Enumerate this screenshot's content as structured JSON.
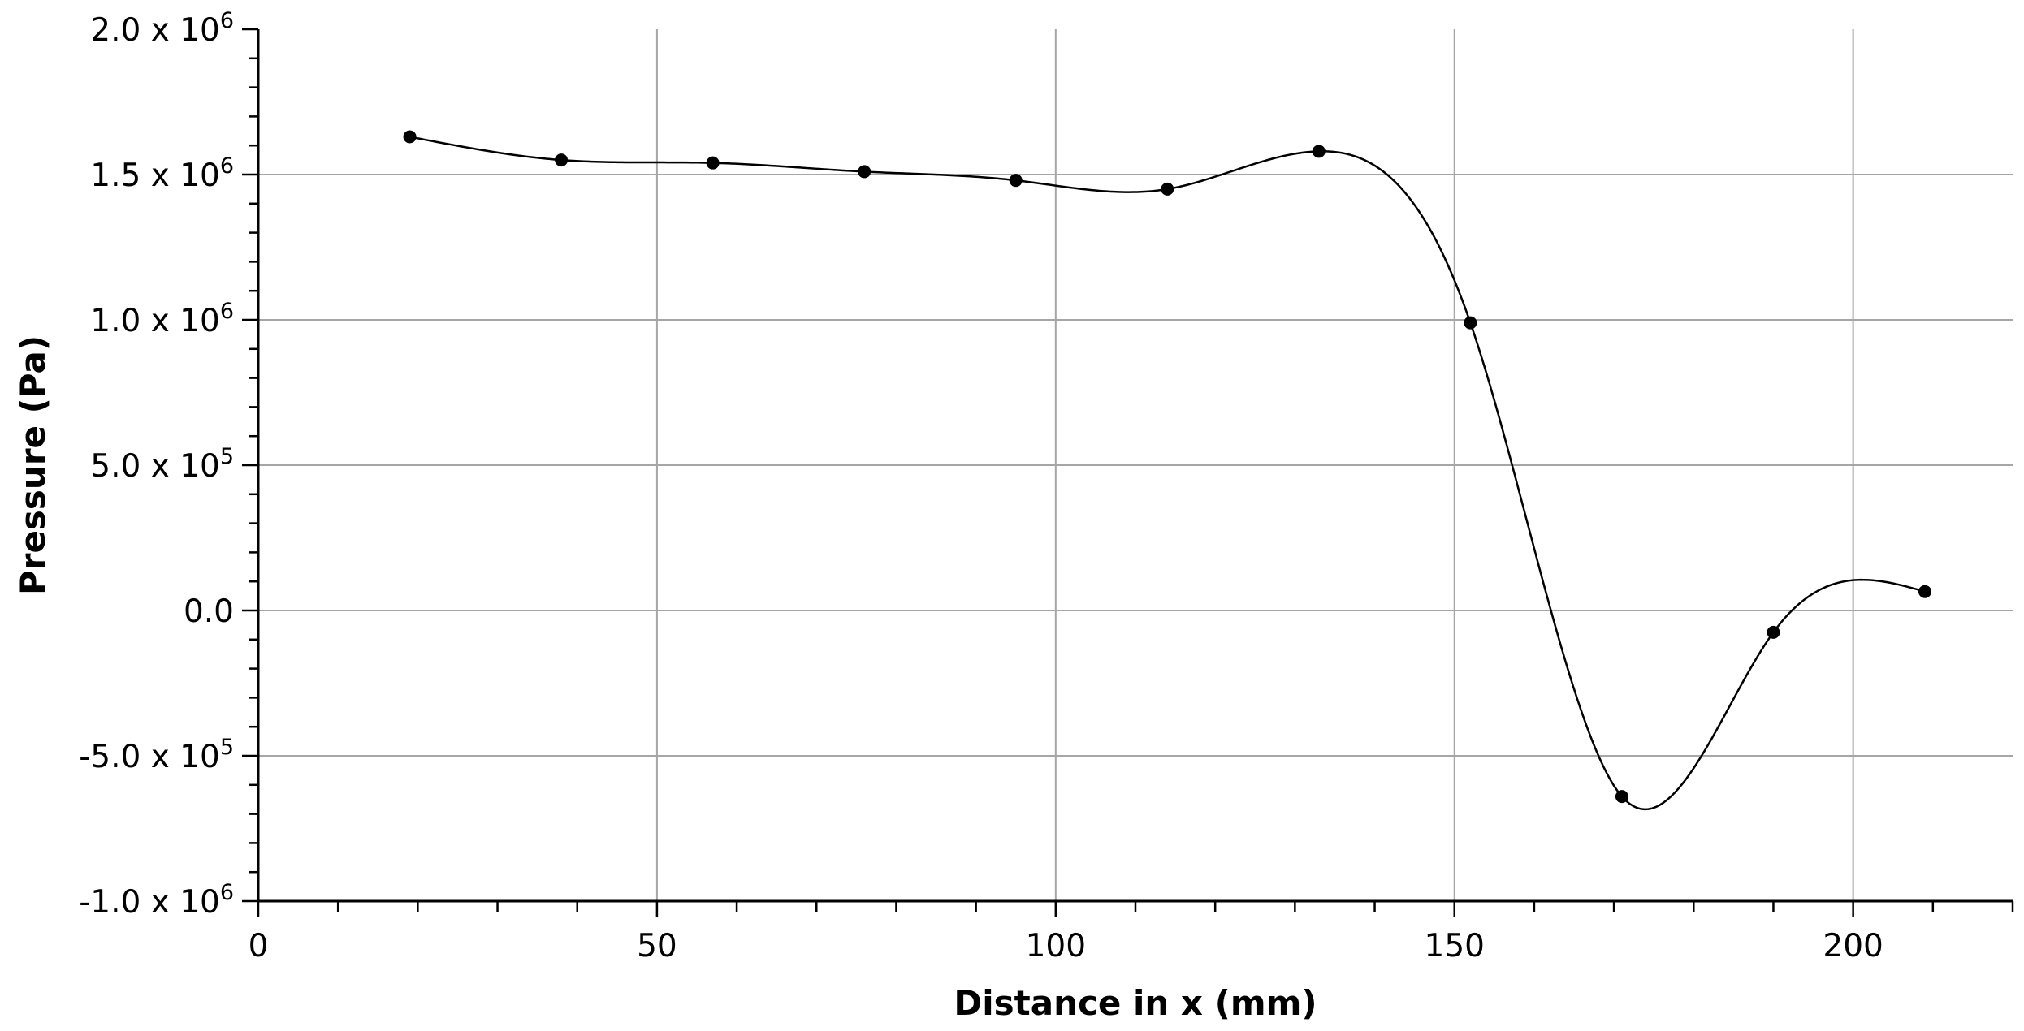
{
  "chart_data": {
    "type": "line",
    "xlabel": "Distance in x (mm)",
    "ylabel": "Pressure (Pa)",
    "xlim": [
      0,
      220
    ],
    "ylim": [
      -1000000,
      2000000
    ],
    "x_ticks": [
      0,
      50,
      100,
      150,
      200
    ],
    "x_tick_labels": [
      "0",
      "50",
      "100",
      "150",
      "200"
    ],
    "y_ticks": [
      {
        "value": 2000000,
        "mantissa": "2.0 x 10",
        "exp": "6"
      },
      {
        "value": 1500000,
        "mantissa": "1.5 x 10",
        "exp": "6"
      },
      {
        "value": 1000000,
        "mantissa": "1.0 x 10",
        "exp": "6"
      },
      {
        "value": 500000,
        "mantissa": "5.0 x 10",
        "exp": "5"
      },
      {
        "value": 0,
        "mantissa": "0.0",
        "exp": ""
      },
      {
        "value": -500000,
        "mantissa": "-5.0 x 10",
        "exp": "5"
      },
      {
        "value": -1000000,
        "mantissa": "-1.0 x 10",
        "exp": "6"
      }
    ],
    "grid": true,
    "legend": "none",
    "series": [
      {
        "style": "smooth line with circular markers",
        "color": "#000000",
        "x": [
          19,
          38,
          57,
          76,
          95,
          114,
          133,
          152,
          171,
          190,
          209
        ],
        "y": [
          1630000,
          1550000,
          1540000,
          1510000,
          1480000,
          1450000,
          1580000,
          990000,
          -640000,
          -75000,
          65000
        ]
      }
    ]
  }
}
